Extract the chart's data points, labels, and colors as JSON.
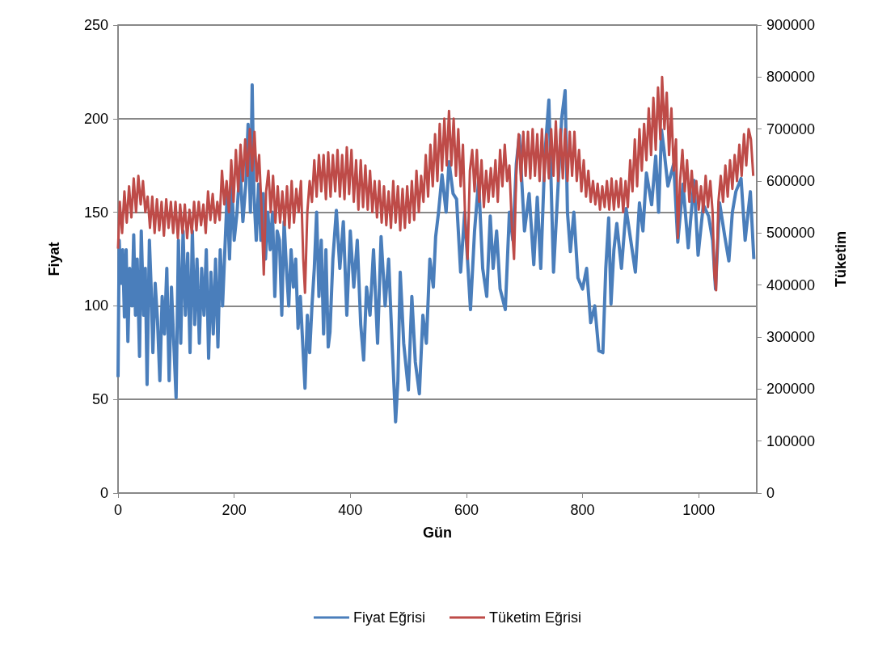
{
  "chart_data": {
    "type": "line",
    "xlabel": "Gün",
    "ylabel": "Fiyat",
    "y2label": "Tüketim",
    "xlim": [
      0,
      1100
    ],
    "xticks": [
      0,
      200,
      400,
      600,
      800,
      1000
    ],
    "ylim": [
      0,
      250
    ],
    "yticks": [
      0,
      50,
      100,
      150,
      200,
      250
    ],
    "y2lim": [
      0,
      900000
    ],
    "y2ticks": [
      0,
      100000,
      200000,
      300000,
      400000,
      500000,
      600000,
      700000,
      800000,
      900000
    ],
    "grid": "y",
    "legend": "bottom",
    "marker": "none",
    "line_style": "solid",
    "series": [
      {
        "name": "Fiyat Eğrisi",
        "color": "#4a7ebb",
        "x": [
          0,
          2,
          5,
          8,
          11,
          14,
          17,
          20,
          24,
          27,
          30,
          33,
          37,
          40,
          44,
          47,
          50,
          54,
          57,
          60,
          64,
          68,
          72,
          76,
          80,
          84,
          88,
          92,
          96,
          100,
          104,
          108,
          112,
          116,
          120,
          124,
          128,
          132,
          136,
          140,
          144,
          148,
          152,
          156,
          160,
          164,
          168,
          172,
          176,
          180,
          184,
          188,
          192,
          196,
          200,
          205,
          210,
          215,
          220,
          224,
          228,
          231,
          234,
          238,
          242,
          246,
          250,
          254,
          258,
          262,
          266,
          270,
          274,
          278,
          282,
          286,
          290,
          294,
          298,
          302,
          306,
          310,
          314,
          318,
          322,
          326,
          330,
          334,
          338,
          342,
          346,
          350,
          354,
          358,
          362,
          365,
          370,
          376,
          382,
          388,
          394,
          400,
          406,
          412,
          418,
          423,
          428,
          434,
          440,
          447,
          453,
          460,
          466,
          472,
          478,
          482,
          486,
          492,
          500,
          506,
          512,
          519,
          525,
          531,
          537,
          543,
          547,
          552,
          558,
          565,
          570,
          577,
          583,
          590,
          597,
          607,
          614,
          621,
          628,
          635,
          641,
          646,
          652,
          658,
          667,
          674,
          680,
          686,
          691,
          700,
          708,
          716,
          722,
          728,
          735,
          742,
          750,
          758,
          764,
          770,
          774,
          779,
          785,
          792,
          800,
          807,
          814,
          821,
          828,
          835,
          840,
          845,
          849,
          854,
          859,
          867,
          875,
          883,
          891,
          898,
          904,
          910,
          919,
          926,
          931,
          936,
          940,
          947,
          957,
          964,
          973,
          982,
          992,
          999,
          1008,
          1017,
          1024,
          1029,
          1036,
          1045,
          1052,
          1058,
          1064,
          1073,
          1080,
          1089,
          1095
        ],
        "values": [
          62,
          135,
          112,
          130,
          94,
          130,
          81,
          120,
          100,
          138,
          95,
          125,
          73,
          140,
          95,
          120,
          58,
          135,
          110,
          75,
          112,
          92,
          60,
          105,
          85,
          120,
          60,
          110,
          80,
          51,
          135,
          80,
          140,
          95,
          128,
          75,
          140,
          90,
          125,
          80,
          120,
          95,
          130,
          72,
          118,
          85,
          125,
          78,
          130,
          100,
          130,
          160,
          125,
          165,
          135,
          150,
          175,
          145,
          165,
          197,
          150,
          218,
          160,
          135,
          165,
          135,
          160,
          125,
          150,
          130,
          150,
          105,
          140,
          135,
          95,
          145,
          120,
          100,
          130,
          110,
          125,
          88,
          105,
          80,
          56,
          95,
          75,
          100,
          120,
          150,
          105,
          135,
          85,
          130,
          78,
          86,
          125,
          151,
          120,
          145,
          95,
          140,
          110,
          135,
          90,
          71,
          110,
          95,
          130,
          80,
          137,
          100,
          125,
          80,
          38,
          60,
          118,
          80,
          55,
          105,
          70,
          53,
          95,
          80,
          125,
          110,
          137,
          150,
          170,
          150,
          177,
          160,
          157,
          118,
          150,
          98,
          140,
          167,
          120,
          105,
          148,
          120,
          140,
          109,
          98,
          150,
          135,
          176,
          191,
          140,
          160,
          122,
          158,
          120,
          180,
          210,
          118,
          165,
          200,
          215,
          150,
          129,
          150,
          115,
          109,
          120,
          91,
          100,
          76,
          75,
          120,
          147,
          101,
          130,
          144,
          120,
          152,
          135,
          118,
          155,
          140,
          171,
          154,
          180,
          150,
          194,
          184,
          164,
          176,
          134,
          165,
          131,
          167,
          127,
          154,
          148,
          135,
          109,
          155,
          137,
          124,
          150,
          161,
          168,
          135,
          161,
          125
        ]
      },
      {
        "name": "Tüketim Eğrisi",
        "color": "#be4b48",
        "axis": "y2",
        "x": [
          0,
          3,
          7,
          11,
          15,
          19,
          23,
          27,
          31,
          35,
          39,
          43,
          47,
          51,
          55,
          59,
          63,
          67,
          71,
          75,
          79,
          83,
          87,
          91,
          95,
          99,
          103,
          107,
          111,
          115,
          119,
          123,
          127,
          131,
          135,
          139,
          143,
          147,
          151,
          155,
          159,
          163,
          167,
          171,
          175,
          179,
          183,
          187,
          191,
          195,
          199,
          203,
          207,
          211,
          215,
          219,
          223,
          227,
          231,
          235,
          239,
          243,
          247,
          251,
          255,
          259,
          263,
          267,
          271,
          275,
          279,
          283,
          287,
          291,
          295,
          299,
          303,
          307,
          311,
          315,
          319,
          322,
          326,
          330,
          334,
          338,
          342,
          346,
          350,
          354,
          358,
          362,
          366,
          370,
          374,
          378,
          382,
          386,
          390,
          394,
          398,
          402,
          406,
          410,
          414,
          418,
          422,
          426,
          430,
          434,
          438,
          442,
          446,
          450,
          454,
          458,
          462,
          466,
          470,
          474,
          478,
          482,
          486,
          490,
          494,
          498,
          502,
          506,
          510,
          514,
          518,
          522,
          526,
          530,
          534,
          538,
          542,
          546,
          550,
          554,
          558,
          562,
          566,
          570,
          574,
          578,
          582,
          586,
          590,
          594,
          598,
          602,
          606,
          610,
          614,
          618,
          622,
          626,
          630,
          634,
          638,
          642,
          646,
          650,
          654,
          658,
          662,
          666,
          670,
          674,
          678,
          682,
          686,
          690,
          694,
          698,
          702,
          706,
          710,
          714,
          718,
          722,
          726,
          730,
          734,
          738,
          742,
          746,
          750,
          754,
          758,
          762,
          766,
          770,
          774,
          778,
          782,
          786,
          790,
          794,
          798,
          802,
          806,
          810,
          814,
          818,
          822,
          826,
          830,
          834,
          838,
          842,
          846,
          850,
          854,
          858,
          862,
          866,
          870,
          874,
          878,
          882,
          886,
          890,
          894,
          898,
          902,
          906,
          910,
          914,
          918,
          922,
          926,
          930,
          934,
          937,
          941,
          945,
          949,
          953,
          957,
          961,
          964,
          968,
          972,
          976,
          980,
          984,
          988,
          992,
          996,
          1000,
          1004,
          1008,
          1012,
          1016,
          1020,
          1024,
          1027,
          1030,
          1034,
          1038,
          1042,
          1046,
          1050,
          1054,
          1058,
          1062,
          1066,
          1070,
          1074,
          1078,
          1082,
          1086,
          1090,
          1094
        ],
        "values": [
          470000,
          560000,
          500000,
          580000,
          520000,
          590000,
          530000,
          605000,
          540000,
          610000,
          555000,
          600000,
          540000,
          570000,
          510000,
          570000,
          500000,
          565000,
          505000,
          560000,
          495000,
          565000,
          510000,
          560000,
          500000,
          560000,
          490000,
          555000,
          500000,
          555000,
          490000,
          545000,
          500000,
          560000,
          505000,
          560000,
          515000,
          555000,
          500000,
          580000,
          525000,
          575000,
          520000,
          560000,
          525000,
          620000,
          555000,
          600000,
          540000,
          640000,
          560000,
          660000,
          580000,
          670000,
          600000,
          680000,
          610000,
          700000,
          620000,
          695000,
          600000,
          650000,
          550000,
          420000,
          580000,
          620000,
          540000,
          610000,
          520000,
          590000,
          520000,
          580000,
          515000,
          590000,
          510000,
          600000,
          520000,
          585000,
          540000,
          600000,
          450000,
          385000,
          540000,
          600000,
          560000,
          640000,
          570000,
          650000,
          580000,
          650000,
          565000,
          655000,
          570000,
          650000,
          580000,
          660000,
          570000,
          650000,
          565000,
          665000,
          575000,
          660000,
          560000,
          640000,
          545000,
          640000,
          550000,
          630000,
          545000,
          620000,
          540000,
          600000,
          530000,
          600000,
          520000,
          590000,
          515000,
          580000,
          510000,
          600000,
          520000,
          590000,
          505000,
          585000,
          510000,
          590000,
          520000,
          600000,
          525000,
          620000,
          540000,
          610000,
          560000,
          650000,
          570000,
          670000,
          590000,
          690000,
          600000,
          710000,
          620000,
          720000,
          630000,
          735000,
          630000,
          720000,
          610000,
          700000,
          590000,
          670000,
          520000,
          450000,
          620000,
          660000,
          580000,
          660000,
          560000,
          640000,
          550000,
          620000,
          560000,
          625000,
          570000,
          640000,
          560000,
          660000,
          590000,
          670000,
          600000,
          630000,
          520000,
          450000,
          620000,
          690000,
          600000,
          695000,
          610000,
          695000,
          605000,
          700000,
          610000,
          690000,
          600000,
          700000,
          600000,
          690000,
          605000,
          700000,
          610000,
          715000,
          600000,
          700000,
          605000,
          700000,
          600000,
          695000,
          610000,
          695000,
          600000,
          660000,
          580000,
          640000,
          570000,
          620000,
          560000,
          600000,
          555000,
          595000,
          545000,
          590000,
          550000,
          600000,
          545000,
          605000,
          545000,
          600000,
          550000,
          605000,
          540000,
          600000,
          550000,
          640000,
          580000,
          680000,
          590000,
          700000,
          620000,
          710000,
          640000,
          740000,
          650000,
          760000,
          660000,
          780000,
          680000,
          800000,
          700000,
          770000,
          650000,
          740000,
          620000,
          680000,
          490000,
          600000,
          660000,
          580000,
          640000,
          560000,
          620000,
          560000,
          600000,
          545000,
          590000,
          540000,
          610000,
          550000,
          600000,
          540000,
          420000,
          390000,
          560000,
          610000,
          560000,
          630000,
          570000,
          640000,
          585000,
          650000,
          600000,
          670000,
          610000,
          690000,
          630000,
          700000,
          680000,
          610000
        ]
      }
    ]
  }
}
